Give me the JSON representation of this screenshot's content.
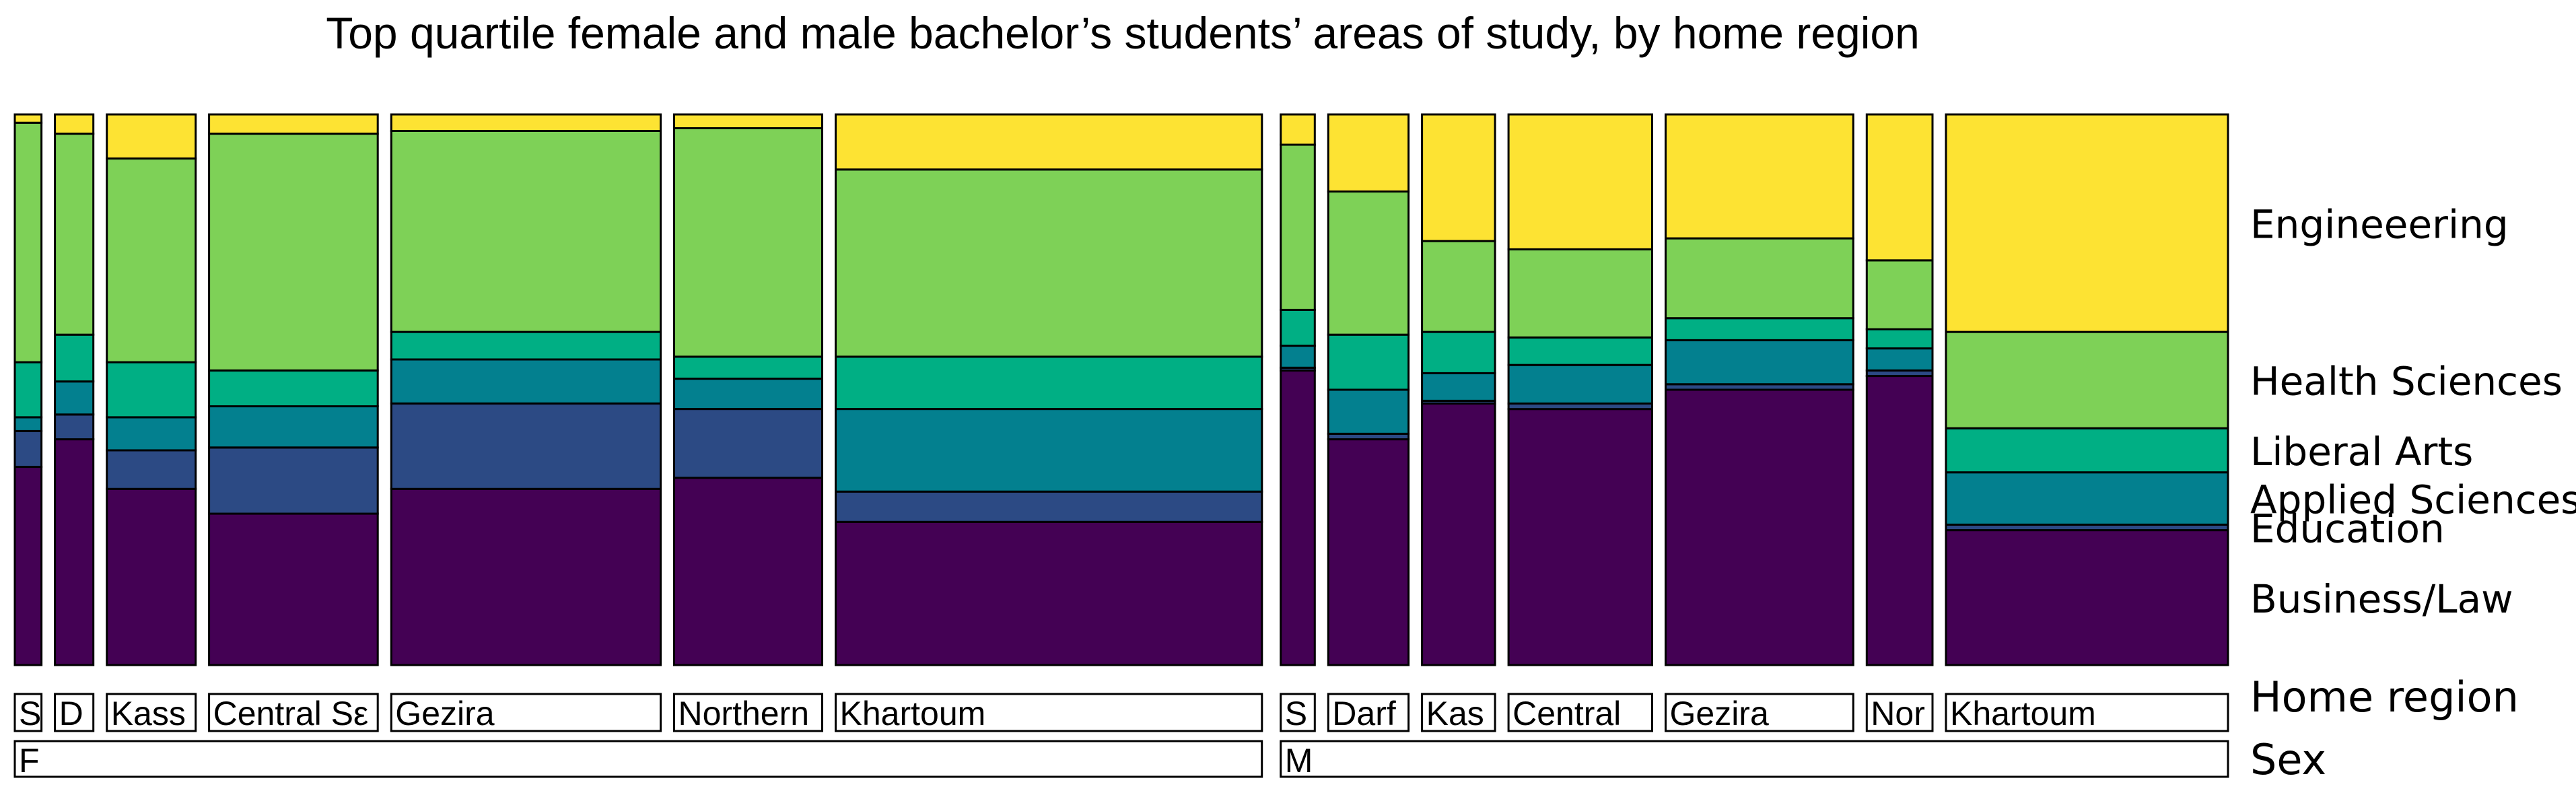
{
  "chart_data": {
    "type": "mosaic",
    "title": "Top quartile female and male bachelor’s students’ areas of study, by home region",
    "legend": {
      "order_top_to_bottom": [
        "Engineeering",
        "Health Sciences",
        "Liberal Arts",
        "Applied Sciences",
        "Education",
        "Business/Law"
      ],
      "placement": "right"
    },
    "axis_labels": {
      "home_region": "Home region",
      "sex": "Sex"
    },
    "stack_order": [
      "Business/Law",
      "Education",
      "Applied Sciences",
      "Liberal Arts",
      "Health Sciences",
      "Engineeering"
    ],
    "colors": {
      "Business/Law": "#440154",
      "Education": "#2C4A84",
      "Applied Sciences": "#03808F",
      "Liberal Arts": "#00AF84",
      "Health Sciences": "#7ED157",
      "Engineeering": "#FDE333"
    },
    "groups": [
      {
        "sex": "F",
        "regions": [
          {
            "label": "S",
            "share": 0.0187,
            "proportions": [
              0.36,
              0.065,
              0.025,
              0.1,
              0.435,
              0.015
            ]
          },
          {
            "label": "D",
            "share": 0.027,
            "proportions": [
              0.41,
              0.045,
              0.06,
              0.085,
              0.365,
              0.035
            ]
          },
          {
            "label": "Kass",
            "share": 0.0624,
            "proportions": [
              0.32,
              0.07,
              0.06,
              0.1,
              0.37,
              0.08
            ]
          },
          {
            "label": "Central Sε",
            "share": 0.1185,
            "proportions": [
              0.275,
              0.12,
              0.075,
              0.065,
              0.43,
              0.035
            ]
          },
          {
            "label": "Gezira",
            "share": 0.1892,
            "proportions": [
              0.32,
              0.155,
              0.08,
              0.05,
              0.365,
              0.03
            ]
          },
          {
            "label": "Northern",
            "share": 0.104,
            "proportions": [
              0.34,
              0.125,
              0.055,
              0.04,
              0.415,
              0.025
            ]
          },
          {
            "label": "Khartoum",
            "share": 0.2994,
            "proportions": [
              0.26,
              0.055,
              0.15,
              0.095,
              0.34,
              0.1
            ]
          }
        ]
      },
      {
        "sex": "M",
        "regions": [
          {
            "label": "S",
            "share": 0.0239,
            "proportions": [
              0.535,
              0.005,
              0.04,
              0.065,
              0.3,
              0.055
            ]
          },
          {
            "label": "Darf",
            "share": 0.0564,
            "proportions": [
              0.41,
              0.01,
              0.08,
              0.1,
              0.26,
              0.14
            ]
          },
          {
            "label": "Kas",
            "share": 0.0513,
            "proportions": [
              0.475,
              0.005,
              0.05,
              0.075,
              0.165,
              0.23
            ]
          },
          {
            "label": "Central",
            "share": 0.1009,
            "proportions": [
              0.465,
              0.01,
              0.07,
              0.05,
              0.16,
              0.245
            ]
          },
          {
            "label": "Gezira",
            "share": 0.1318,
            "proportions": [
              0.5,
              0.01,
              0.08,
              0.04,
              0.145,
              0.225
            ]
          },
          {
            "label": "Nor",
            "share": 0.0462,
            "proportions": [
              0.525,
              0.01,
              0.04,
              0.035,
              0.125,
              0.265
            ]
          },
          {
            "label": "Khartoum",
            "share": 0.1981,
            "proportions": [
              0.245,
              0.01,
              0.095,
              0.08,
              0.175,
              0.395
            ]
          }
        ]
      }
    ]
  }
}
